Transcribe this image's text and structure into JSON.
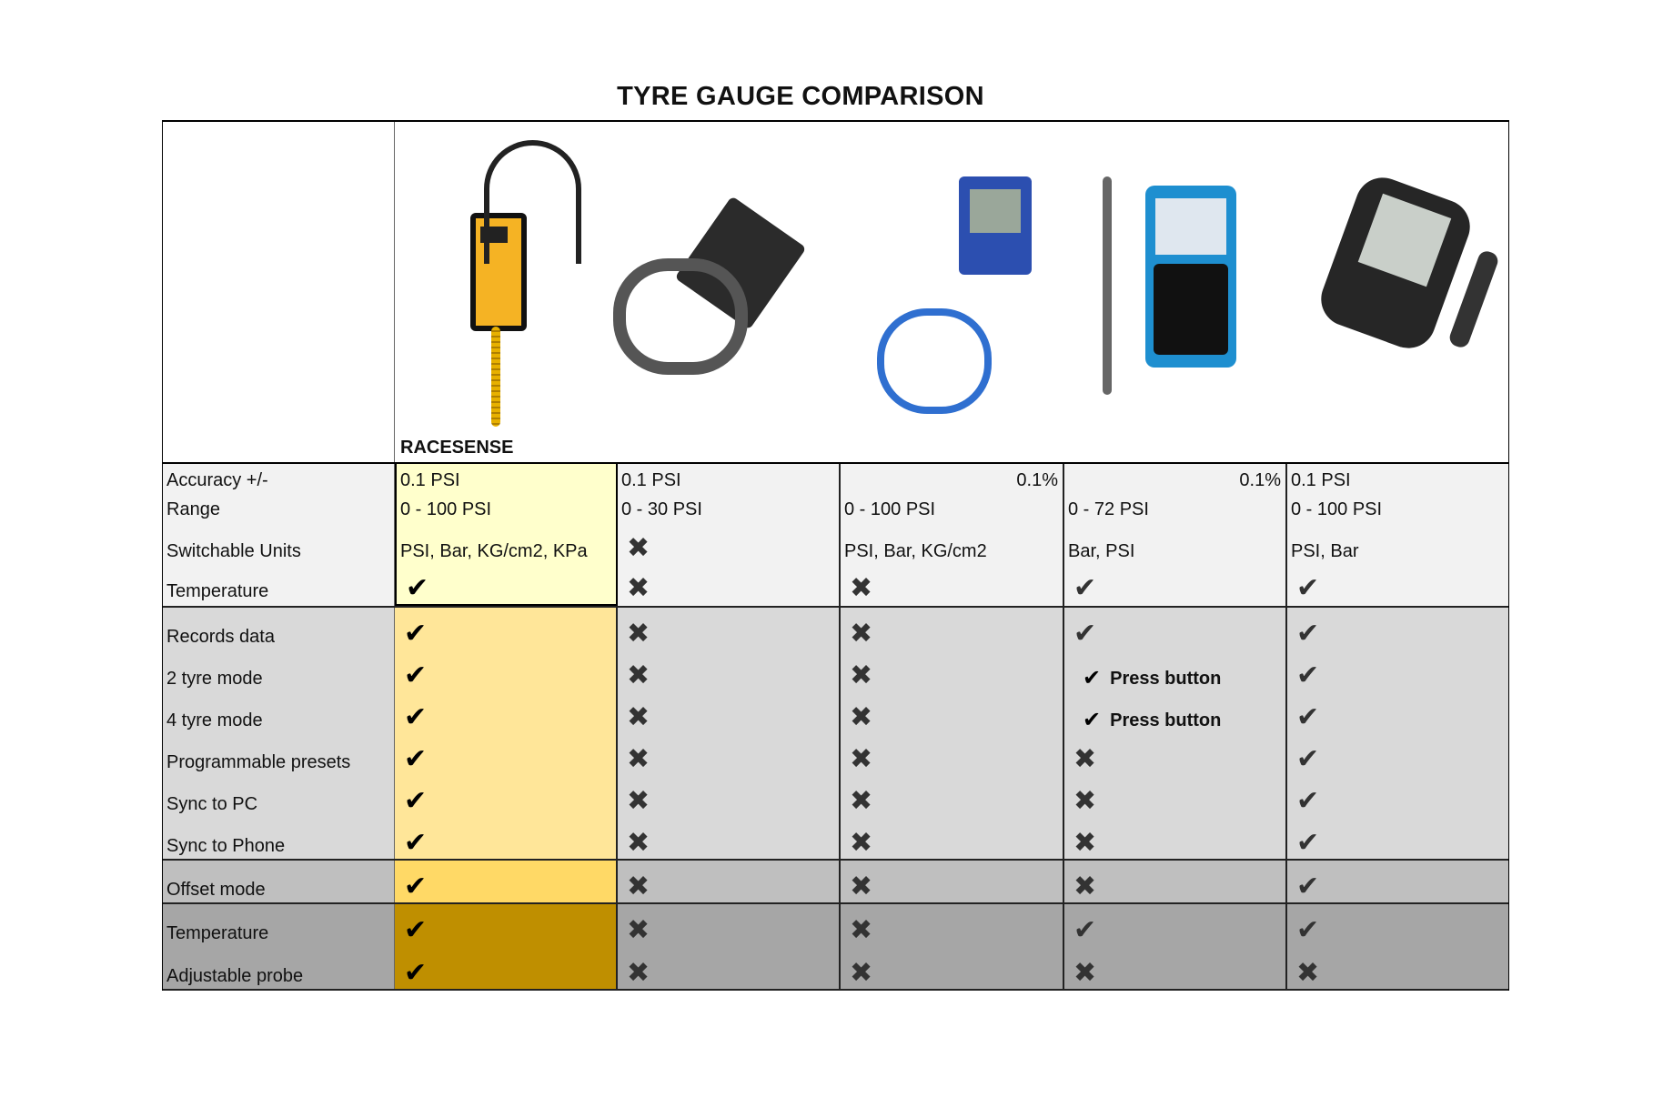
{
  "title": "TYRE GAUGE COMPARISON",
  "header": {
    "brand": "RACESENSE"
  },
  "colors": {
    "group1": "#f2f2f2",
    "group1_rs": "#ffffcc",
    "group2": "#d9d9d9",
    "group2_rs": "#ffe699",
    "group3": "#bfbfbf",
    "group3_rs": "#ffd966",
    "group4": "#a6a6a6",
    "group4_rs": "#bf8f00"
  },
  "icons": {
    "yes": "check-icon",
    "no": "cross-icon"
  },
  "groups": [
    {
      "rows": [
        {
          "label": "Accuracy +/-",
          "values": [
            {
              "t": "0.1 PSI"
            },
            {
              "t": "0.1 PSI"
            },
            {
              "t": "0.1%",
              "align": "right"
            },
            {
              "t": "0.1%",
              "align": "right"
            },
            {
              "t": "0.1 PSI"
            }
          ]
        },
        {
          "label": "Range",
          "values": [
            {
              "t": "0 - 100 PSI"
            },
            {
              "t": "0 - 30 PSI"
            },
            {
              "t": "0 - 100 PSI"
            },
            {
              "t": "0 - 72 PSI"
            },
            {
              "t": "0 - 100 PSI"
            }
          ]
        },
        {
          "label": "Switchable Units",
          "values": [
            {
              "t": "PSI, Bar, KG/cm2, KPa"
            },
            {
              "m": "no"
            },
            {
              "t": "PSI, Bar, KG/cm2"
            },
            {
              "t": "Bar, PSI"
            },
            {
              "t": "PSI, Bar"
            }
          ]
        },
        {
          "label": "Temperature",
          "values": [
            {
              "m": "yes"
            },
            {
              "m": "no"
            },
            {
              "m": "no"
            },
            {
              "m": "yes"
            },
            {
              "m": "yes"
            }
          ]
        }
      ]
    },
    {
      "rows": [
        {
          "label": "Records data",
          "values": [
            {
              "m": "yes"
            },
            {
              "m": "no"
            },
            {
              "m": "no"
            },
            {
              "m": "yes"
            },
            {
              "m": "yes"
            }
          ]
        },
        {
          "label": "2 tyre mode",
          "values": [
            {
              "m": "yes"
            },
            {
              "m": "no"
            },
            {
              "m": "no"
            },
            {
              "m": "yes",
              "note": "Press button"
            },
            {
              "m": "yes"
            }
          ]
        },
        {
          "label": "4 tyre mode",
          "values": [
            {
              "m": "yes"
            },
            {
              "m": "no"
            },
            {
              "m": "no"
            },
            {
              "m": "yes",
              "note": "Press button"
            },
            {
              "m": "yes"
            }
          ]
        },
        {
          "label": "Programmable presets",
          "values": [
            {
              "m": "yes"
            },
            {
              "m": "no"
            },
            {
              "m": "no"
            },
            {
              "m": "no"
            },
            {
              "m": "yes"
            }
          ]
        },
        {
          "label": "Sync to PC",
          "values": [
            {
              "m": "yes"
            },
            {
              "m": "no"
            },
            {
              "m": "no"
            },
            {
              "m": "no"
            },
            {
              "m": "yes"
            }
          ]
        },
        {
          "label": "Sync to Phone",
          "values": [
            {
              "m": "yes"
            },
            {
              "m": "no"
            },
            {
              "m": "no"
            },
            {
              "m": "no"
            },
            {
              "m": "yes"
            }
          ]
        }
      ]
    },
    {
      "rows": [
        {
          "label": "Offset mode",
          "values": [
            {
              "m": "yes"
            },
            {
              "m": "no"
            },
            {
              "m": "no"
            },
            {
              "m": "no"
            },
            {
              "m": "yes"
            }
          ]
        }
      ]
    },
    {
      "rows": [
        {
          "label": "Temperature",
          "values": [
            {
              "m": "yes"
            },
            {
              "m": "no"
            },
            {
              "m": "no"
            },
            {
              "m": "yes"
            },
            {
              "m": "yes"
            }
          ]
        },
        {
          "label": "Adjustable probe",
          "values": [
            {
              "m": "yes"
            },
            {
              "m": "no"
            },
            {
              "m": "no"
            },
            {
              "m": "no"
            },
            {
              "m": "no"
            }
          ]
        }
      ]
    }
  ]
}
